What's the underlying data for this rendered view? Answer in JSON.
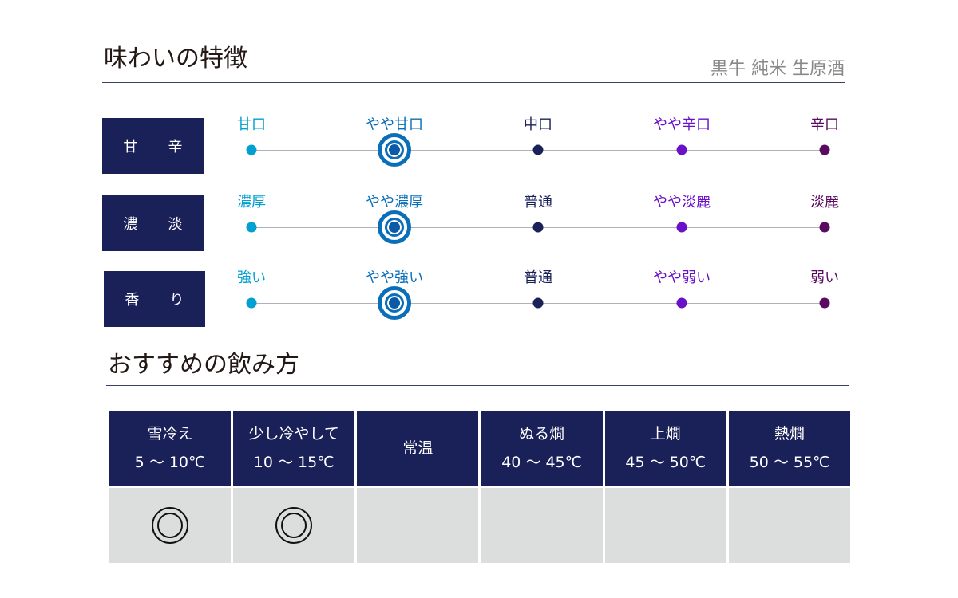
{
  "taste": {
    "title": "味わいの特徴",
    "product": "黒牛 純米 生原酒",
    "colors": [
      "#00a0d0",
      "#0a6fb8",
      "#1a2058",
      "#6a10c8",
      "#5a0a60"
    ],
    "rows": [
      {
        "label": "甘 辛",
        "ticks": [
          "甘口",
          "やや甘口",
          "中口",
          "やや辛口",
          "辛口"
        ],
        "selected": 1
      },
      {
        "label": "濃 淡",
        "ticks": [
          "濃厚",
          "やや濃厚",
          "普通",
          "やや淡麗",
          "淡麗"
        ],
        "selected": 1
      },
      {
        "label": "香 り",
        "ticks": [
          "強い",
          "やや強い",
          "普通",
          "やや弱い",
          "弱い"
        ],
        "selected": 1
      }
    ]
  },
  "serving": {
    "title": "おすすめの飲み方",
    "columns": [
      {
        "name": "雪冷え",
        "temp": "5 ～ 10℃",
        "recommended": true
      },
      {
        "name": "少し冷やして",
        "temp": "10 ～ 15℃",
        "recommended": true
      },
      {
        "name": "常温",
        "temp": "",
        "recommended": false
      },
      {
        "name": "ぬる燗",
        "temp": "40 ～ 45℃",
        "recommended": false
      },
      {
        "name": "上燗",
        "temp": "45 ～ 50℃",
        "recommended": false
      },
      {
        "name": "熱燗",
        "temp": "50 ～ 55℃",
        "recommended": false
      }
    ]
  }
}
